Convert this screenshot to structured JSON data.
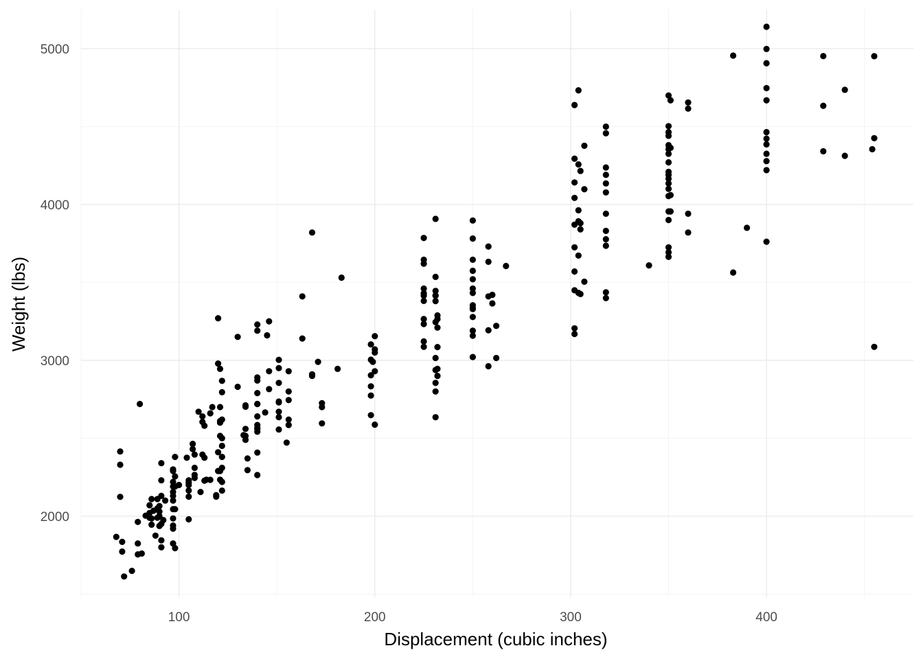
{
  "chart_data": {
    "type": "scatter",
    "title": "",
    "xlabel": "Displacement (cubic inches)",
    "ylabel": "Weight (lbs)",
    "xlim": [
      50,
      475
    ],
    "ylim": [
      1480,
      5250
    ],
    "x_ticks": [
      100,
      200,
      300,
      400
    ],
    "y_ticks": [
      2000,
      3000,
      4000,
      5000
    ],
    "x_tick_labels": [
      "100",
      "200",
      "300",
      "400"
    ],
    "y_tick_labels": [
      "2000",
      "3000",
      "4000",
      "5000"
    ],
    "grid": true,
    "legend": "none",
    "point_color": "#000000",
    "points": [
      [
        68,
        1867
      ],
      [
        70,
        2415
      ],
      [
        70,
        2330
      ],
      [
        70,
        2124
      ],
      [
        71,
        1773
      ],
      [
        71,
        1835
      ],
      [
        72,
        1613
      ],
      [
        76,
        1649
      ],
      [
        79,
        1755
      ],
      [
        79,
        1825
      ],
      [
        79,
        1963
      ],
      [
        80,
        2720
      ],
      [
        81,
        1760
      ],
      [
        83,
        2003
      ],
      [
        85,
        1990
      ],
      [
        85,
        2020
      ],
      [
        85,
        2070
      ],
      [
        86,
        2110
      ],
      [
        86,
        1985
      ],
      [
        86,
        1945
      ],
      [
        87,
        2035
      ],
      [
        88,
        1875
      ],
      [
        89,
        1990
      ],
      [
        89,
        2050
      ],
      [
        89,
        2110
      ],
      [
        90,
        1937
      ],
      [
        90,
        2000
      ],
      [
        90,
        2030
      ],
      [
        90,
        2065
      ],
      [
        91,
        1845
      ],
      [
        91,
        1950
      ],
      [
        91,
        2130
      ],
      [
        91,
        2340
      ],
      [
        91,
        2230
      ],
      [
        91,
        1800
      ],
      [
        92,
        1975
      ],
      [
        93,
        2100
      ],
      [
        97,
        1825
      ],
      [
        97,
        1940
      ],
      [
        97,
        2045
      ],
      [
        97,
        2130
      ],
      [
        97,
        2155
      ],
      [
        97,
        2220
      ],
      [
        97,
        2290
      ],
      [
        97,
        2300
      ],
      [
        97,
        2190
      ],
      [
        97,
        2100
      ],
      [
        97,
        1985
      ],
      [
        97,
        1920
      ],
      [
        98,
        1795
      ],
      [
        98,
        2045
      ],
      [
        98,
        2190
      ],
      [
        98,
        2380
      ],
      [
        98,
        2255
      ],
      [
        100,
        2200
      ],
      [
        104,
        2375
      ],
      [
        105,
        2200
      ],
      [
        105,
        2125
      ],
      [
        105,
        2165
      ],
      [
        105,
        2215
      ],
      [
        105,
        2230
      ],
      [
        105,
        1980
      ],
      [
        107,
        2464
      ],
      [
        107,
        2430
      ],
      [
        108,
        2245
      ],
      [
        108,
        2265
      ],
      [
        108,
        2310
      ],
      [
        108,
        2395
      ],
      [
        110,
        2670
      ],
      [
        111,
        2155
      ],
      [
        112,
        2395
      ],
      [
        112,
        2640
      ],
      [
        112,
        2605
      ],
      [
        113,
        2228
      ],
      [
        113,
        2375
      ],
      [
        113,
        2580
      ],
      [
        114,
        2234
      ],
      [
        116,
        2233
      ],
      [
        116,
        2660
      ],
      [
        117,
        2700
      ],
      [
        119,
        2135
      ],
      [
        119,
        2125
      ],
      [
        120,
        2290
      ],
      [
        120,
        2410
      ],
      [
        120,
        2979
      ],
      [
        120,
        3270
      ],
      [
        121,
        2234
      ],
      [
        121,
        2290
      ],
      [
        121,
        2515
      ],
      [
        121,
        2610
      ],
      [
        121,
        2945
      ],
      [
        121,
        2700
      ],
      [
        121,
        2600
      ],
      [
        122,
        2451
      ],
      [
        122,
        2310
      ],
      [
        122,
        2220
      ],
      [
        122,
        2164
      ],
      [
        122,
        2380
      ],
      [
        122,
        2500
      ],
      [
        122,
        2620
      ],
      [
        122,
        2795
      ],
      [
        122,
        2868
      ],
      [
        130,
        2830
      ],
      [
        130,
        3150
      ],
      [
        133,
        2520
      ],
      [
        134,
        2515
      ],
      [
        134,
        2560
      ],
      [
        134,
        2711
      ],
      [
        134,
        2702
      ],
      [
        134,
        2490
      ],
      [
        135,
        2295
      ],
      [
        135,
        2370
      ],
      [
        140,
        2560
      ],
      [
        140,
        2565
      ],
      [
        140,
        2542
      ],
      [
        140,
        2585
      ],
      [
        140,
        2640
      ],
      [
        140,
        2720
      ],
      [
        140,
        2720
      ],
      [
        140,
        2790
      ],
      [
        140,
        2870
      ],
      [
        140,
        2890
      ],
      [
        140,
        3190
      ],
      [
        140,
        3230
      ],
      [
        140,
        2408
      ],
      [
        140,
        2264
      ],
      [
        144,
        2665
      ],
      [
        145,
        3160
      ],
      [
        146,
        2930
      ],
      [
        146,
        3250
      ],
      [
        146,
        2815
      ],
      [
        151,
        3003
      ],
      [
        151,
        2950
      ],
      [
        151,
        2855
      ],
      [
        151,
        2735
      ],
      [
        151,
        2670
      ],
      [
        151,
        2635
      ],
      [
        151,
        2556
      ],
      [
        151,
        2730
      ],
      [
        155,
        2472
      ],
      [
        156,
        2930
      ],
      [
        156,
        2800
      ],
      [
        156,
        2745
      ],
      [
        156,
        2620
      ],
      [
        156,
        2585
      ],
      [
        163,
        3140
      ],
      [
        163,
        3410
      ],
      [
        168,
        2900
      ],
      [
        168,
        2910
      ],
      [
        168,
        3820
      ],
      [
        171,
        2990
      ],
      [
        173,
        2725
      ],
      [
        173,
        2700
      ],
      [
        173,
        2595
      ],
      [
        181,
        2945
      ],
      [
        183,
        3530
      ],
      [
        198,
        2904
      ],
      [
        198,
        2833
      ],
      [
        198,
        3102
      ],
      [
        198,
        3004
      ],
      [
        198,
        2648
      ],
      [
        198,
        2774
      ],
      [
        199,
        2990
      ],
      [
        200,
        2587
      ],
      [
        200,
        2930
      ],
      [
        200,
        3155
      ],
      [
        200,
        3070
      ],
      [
        200,
        3050
      ],
      [
        225,
        3086
      ],
      [
        225,
        3121
      ],
      [
        225,
        3233
      ],
      [
        225,
        3265
      ],
      [
        225,
        3381
      ],
      [
        225,
        3415
      ],
      [
        225,
        3430
      ],
      [
        225,
        3460
      ],
      [
        225,
        3620
      ],
      [
        225,
        3645
      ],
      [
        225,
        3785
      ],
      [
        231,
        2635
      ],
      [
        231,
        2855
      ],
      [
        231,
        2938
      ],
      [
        231,
        3015
      ],
      [
        231,
        3245
      ],
      [
        231,
        3380
      ],
      [
        231,
        3415
      ],
      [
        231,
        3445
      ],
      [
        231,
        3535
      ],
      [
        231,
        3415
      ],
      [
        231,
        3907
      ],
      [
        231,
        2800
      ],
      [
        232,
        2945
      ],
      [
        232,
        3210
      ],
      [
        232,
        3265
      ],
      [
        232,
        3288
      ],
      [
        232,
        3085
      ],
      [
        232,
        2900
      ],
      [
        250,
        3021
      ],
      [
        250,
        3158
      ],
      [
        250,
        3329
      ],
      [
        250,
        3278
      ],
      [
        250,
        3336
      ],
      [
        250,
        3353
      ],
      [
        250,
        3432
      ],
      [
        250,
        3460
      ],
      [
        250,
        3520
      ],
      [
        250,
        3574
      ],
      [
        250,
        3645
      ],
      [
        250,
        3781
      ],
      [
        250,
        3897
      ],
      [
        250,
        3190
      ],
      [
        258,
        2962
      ],
      [
        258,
        3193
      ],
      [
        258,
        3410
      ],
      [
        258,
        3730
      ],
      [
        258,
        3632
      ],
      [
        260,
        3365
      ],
      [
        260,
        3420
      ],
      [
        262,
        3015
      ],
      [
        262,
        3221
      ],
      [
        267,
        3605
      ],
      [
        302,
        3169
      ],
      [
        302,
        3205
      ],
      [
        302,
        3449
      ],
      [
        302,
        3570
      ],
      [
        302,
        3725
      ],
      [
        302,
        3870
      ],
      [
        302,
        4042
      ],
      [
        302,
        4141
      ],
      [
        302,
        4294
      ],
      [
        302,
        4638
      ],
      [
        304,
        3672
      ],
      [
        304,
        3962
      ],
      [
        304,
        4257
      ],
      [
        304,
        3433
      ],
      [
        304,
        3892
      ],
      [
        305,
        3425
      ],
      [
        305,
        3840
      ],
      [
        305,
        3880
      ],
      [
        305,
        4215
      ],
      [
        307,
        4098
      ],
      [
        307,
        4376
      ],
      [
        307,
        3504
      ],
      [
        304,
        4732
      ],
      [
        318,
        3399
      ],
      [
        318,
        3436
      ],
      [
        318,
        3735
      ],
      [
        318,
        3777
      ],
      [
        318,
        3830
      ],
      [
        318,
        3940
      ],
      [
        318,
        4077
      ],
      [
        318,
        4135
      ],
      [
        318,
        4190
      ],
      [
        318,
        4237
      ],
      [
        318,
        4457
      ],
      [
        318,
        4499
      ],
      [
        340,
        3609
      ],
      [
        350,
        3664
      ],
      [
        350,
        3693
      ],
      [
        350,
        3725
      ],
      [
        350,
        3900
      ],
      [
        350,
        3955
      ],
      [
        350,
        4054
      ],
      [
        350,
        4100
      ],
      [
        350,
        4135
      ],
      [
        350,
        4165
      ],
      [
        350,
        4190
      ],
      [
        350,
        4209
      ],
      [
        350,
        4270
      ],
      [
        350,
        4325
      ],
      [
        350,
        4354
      ],
      [
        350,
        4380
      ],
      [
        350,
        4440
      ],
      [
        350,
        4464
      ],
      [
        350,
        4502
      ],
      [
        350,
        4699
      ],
      [
        351,
        4060
      ],
      [
        351,
        4363
      ],
      [
        351,
        3955
      ],
      [
        351,
        4668
      ],
      [
        360,
        3940
      ],
      [
        360,
        3820
      ],
      [
        360,
        4615
      ],
      [
        360,
        4654
      ],
      [
        383,
        3563
      ],
      [
        383,
        4955
      ],
      [
        390,
        3850
      ],
      [
        400,
        3761
      ],
      [
        400,
        4220
      ],
      [
        400,
        4278
      ],
      [
        400,
        4325
      ],
      [
        400,
        4385
      ],
      [
        400,
        4422
      ],
      [
        400,
        4464
      ],
      [
        400,
        4668
      ],
      [
        400,
        4746
      ],
      [
        400,
        4906
      ],
      [
        400,
        4997
      ],
      [
        400,
        5140
      ],
      [
        429,
        4341
      ],
      [
        429,
        4633
      ],
      [
        429,
        4952
      ],
      [
        440,
        4312
      ],
      [
        440,
        4735
      ],
      [
        454,
        4354
      ],
      [
        455,
        3086
      ],
      [
        455,
        4425
      ],
      [
        455,
        4951
      ]
    ]
  }
}
